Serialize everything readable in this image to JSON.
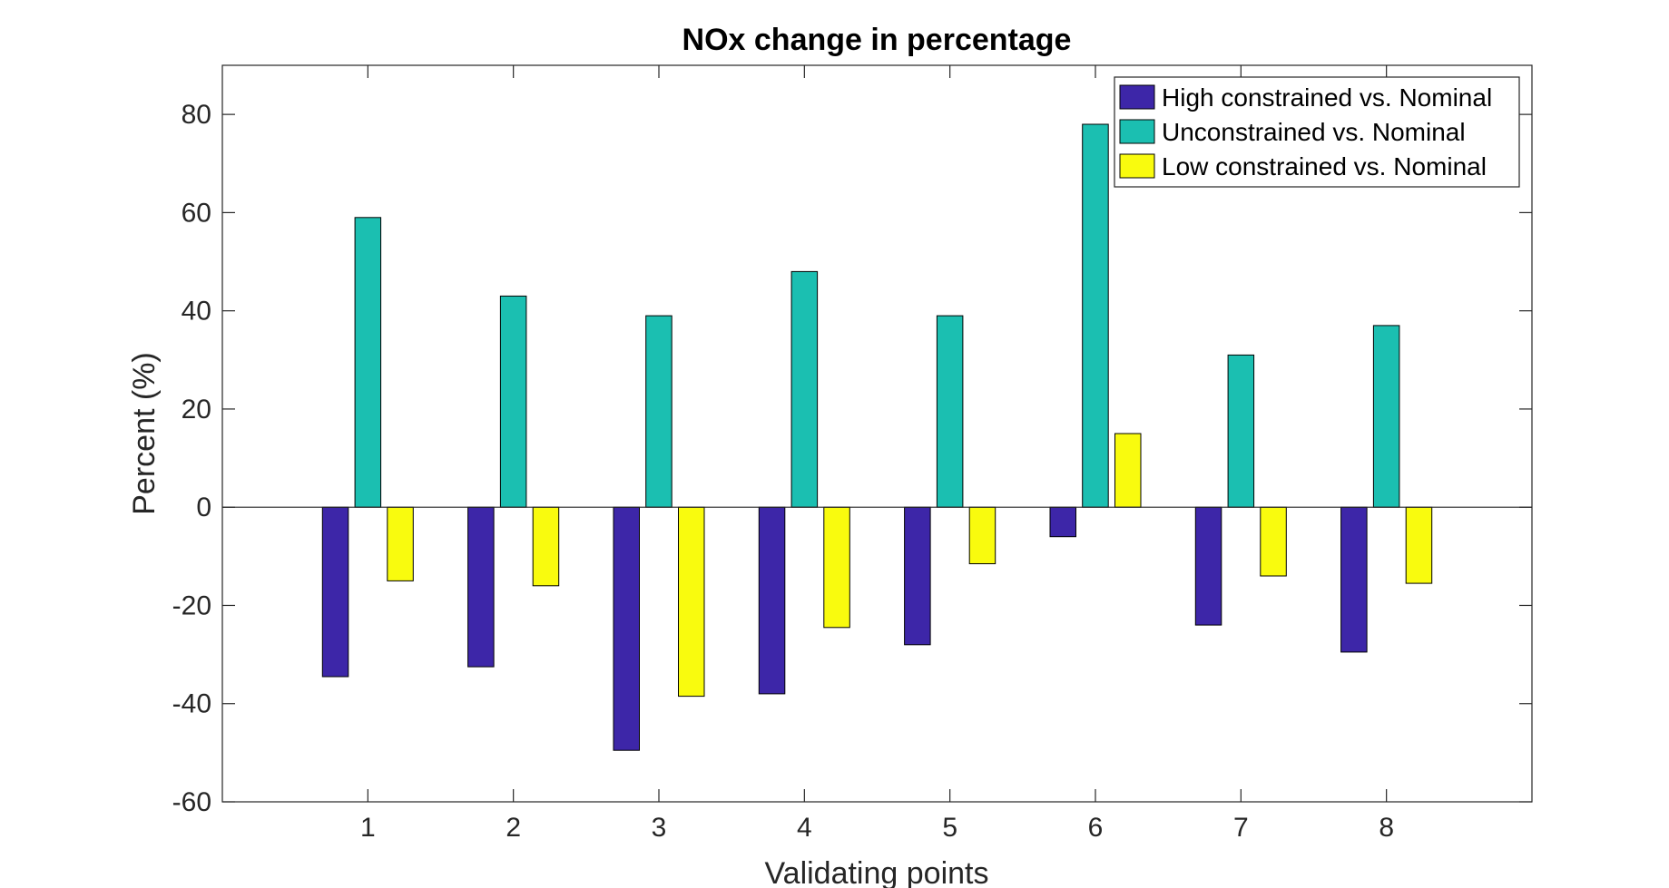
{
  "chart_data": {
    "type": "bar",
    "title": "NOx change in percentage",
    "xlabel": "Validating points",
    "ylabel": "Percent (%)",
    "categories": [
      "1",
      "2",
      "3",
      "4",
      "5",
      "6",
      "7",
      "8"
    ],
    "xlim": [
      0,
      9
    ],
    "ylim": [
      -60,
      90
    ],
    "yticks": [
      -60,
      -40,
      -20,
      0,
      20,
      40,
      60,
      80
    ],
    "ytick_labels": [
      "-60",
      "-40",
      "-20",
      "0",
      "20",
      "40",
      "60",
      "80"
    ],
    "grid": false,
    "legend_position": "top-right",
    "series": [
      {
        "name": "High constrained vs. Nominal",
        "color": "#3d26a8",
        "values": [
          -34.5,
          -32.5,
          -49.5,
          -38,
          -28,
          -6,
          -24,
          -29.5
        ]
      },
      {
        "name": "Unconstrained vs. Nominal",
        "color": "#1bbfb1",
        "values": [
          59,
          43,
          39,
          48,
          39,
          78,
          31,
          37
        ]
      },
      {
        "name": "Low constrained vs. Nominal",
        "color": "#f9fb0e",
        "values": [
          -15,
          -16,
          -38.5,
          -24.5,
          -11.5,
          15,
          -14,
          -15.5
        ]
      }
    ]
  }
}
